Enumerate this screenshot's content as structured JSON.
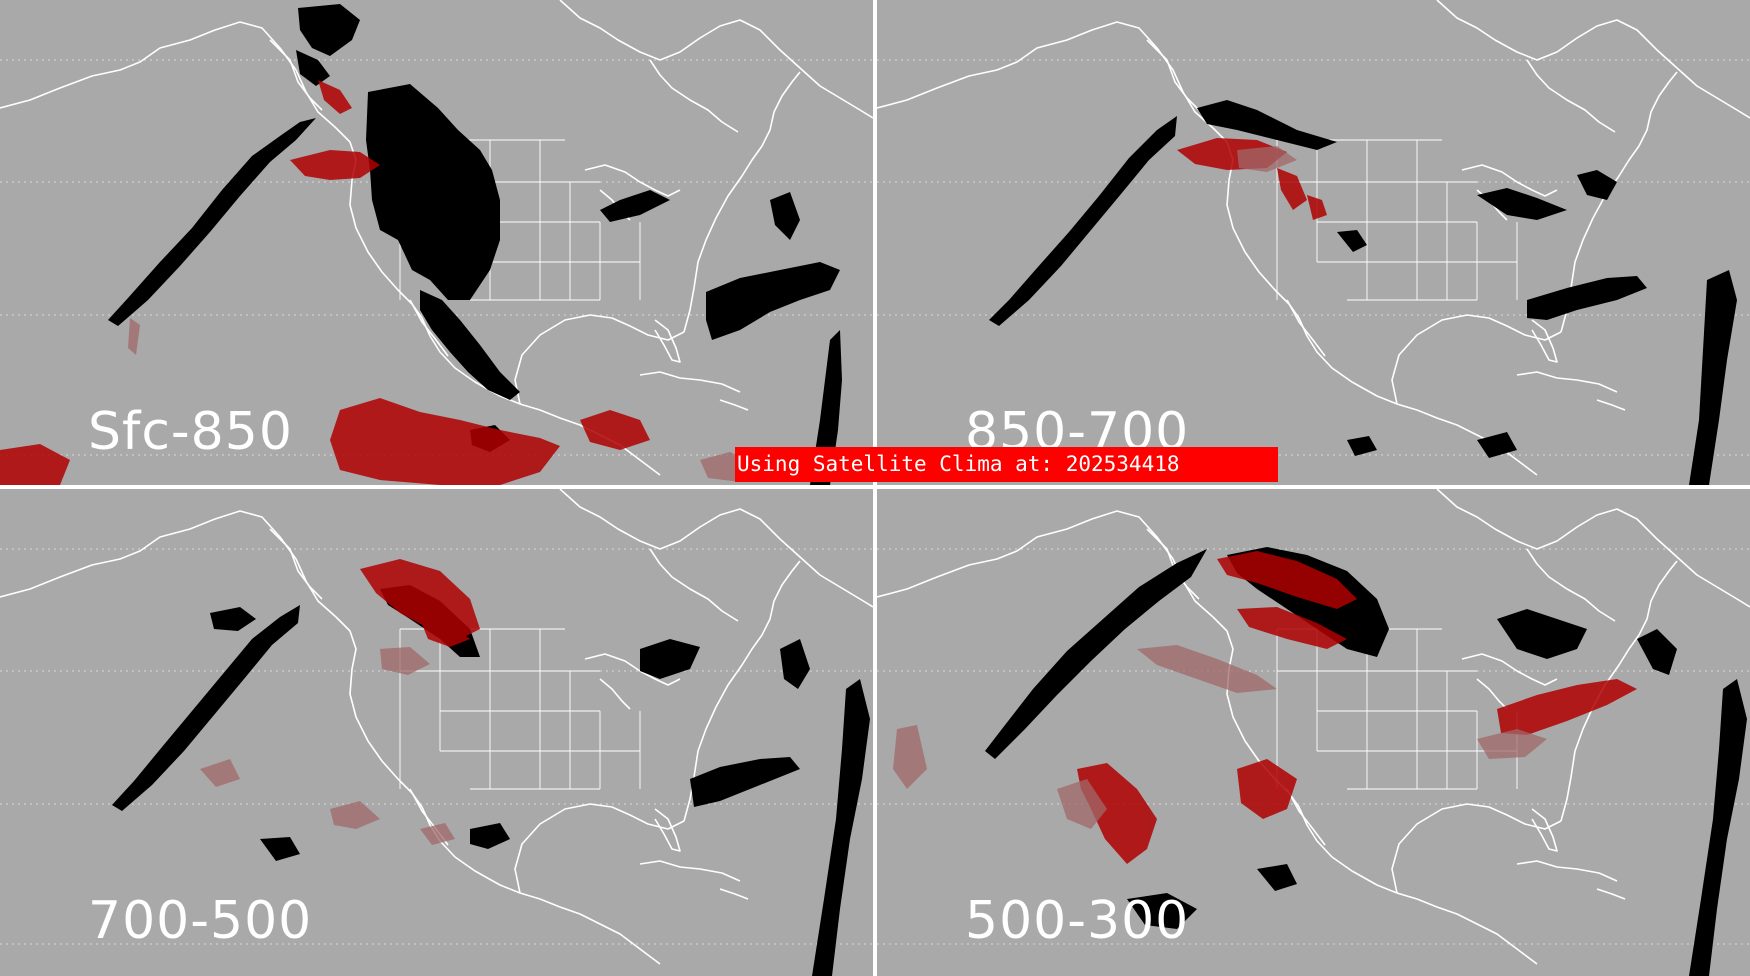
{
  "panels": [
    {
      "label": "Sfc-850"
    },
    {
      "label": "850-700"
    },
    {
      "label": "700-500"
    },
    {
      "label": "500-300"
    }
  ],
  "banner": {
    "text": "Using Satellite Clima at: 202534418"
  },
  "colors": {
    "background": "#a9a9a9",
    "coastlines": "#ffffff",
    "grid_lines": "#d9d9d9",
    "cloud_black": "#000000",
    "cloud_red": "#b00000",
    "cloud_pink": "#a06868",
    "banner": "#ff0000"
  }
}
